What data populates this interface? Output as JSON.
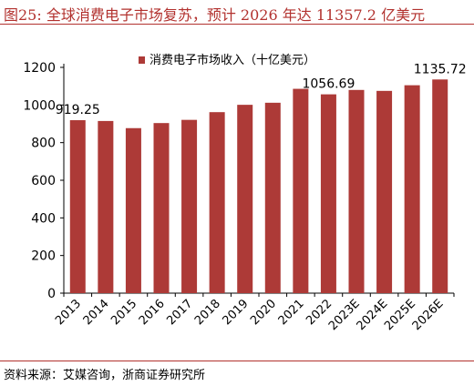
{
  "figure": {
    "title": "图25:  全球消费电子市场复苏，预计 2026 年达 11357.2 亿美元",
    "source": "资料来源：艾媒咨询，浙商证券研究所"
  },
  "chart_data": {
    "type": "bar",
    "title": "",
    "xlabel": "",
    "ylabel": "",
    "categories": [
      "2013",
      "2014",
      "2015",
      "2016",
      "2017",
      "2018",
      "2019",
      "2020",
      "2021",
      "2022",
      "2023E",
      "2024E",
      "2025E",
      "2026E"
    ],
    "series": [
      {
        "name": "消费电子市场收入（十亿美元）",
        "values": [
          919.25,
          915,
          877,
          904,
          921,
          962,
          1001,
          1012,
          1086,
          1056.69,
          1080,
          1075,
          1105,
          1135.72
        ]
      }
    ],
    "data_labels": [
      {
        "category": "2013",
        "text": "919.25"
      },
      {
        "category": "2022",
        "text": "1056.69"
      },
      {
        "category": "2026E",
        "text": "1135.72"
      }
    ],
    "ylim": [
      0,
      1200
    ],
    "yticks": [
      0,
      200,
      400,
      600,
      800,
      1000,
      1200
    ],
    "grid": false,
    "legend_position": "top-center",
    "bar_color": "#ad3a37",
    "accent_color": "#b2312e"
  }
}
